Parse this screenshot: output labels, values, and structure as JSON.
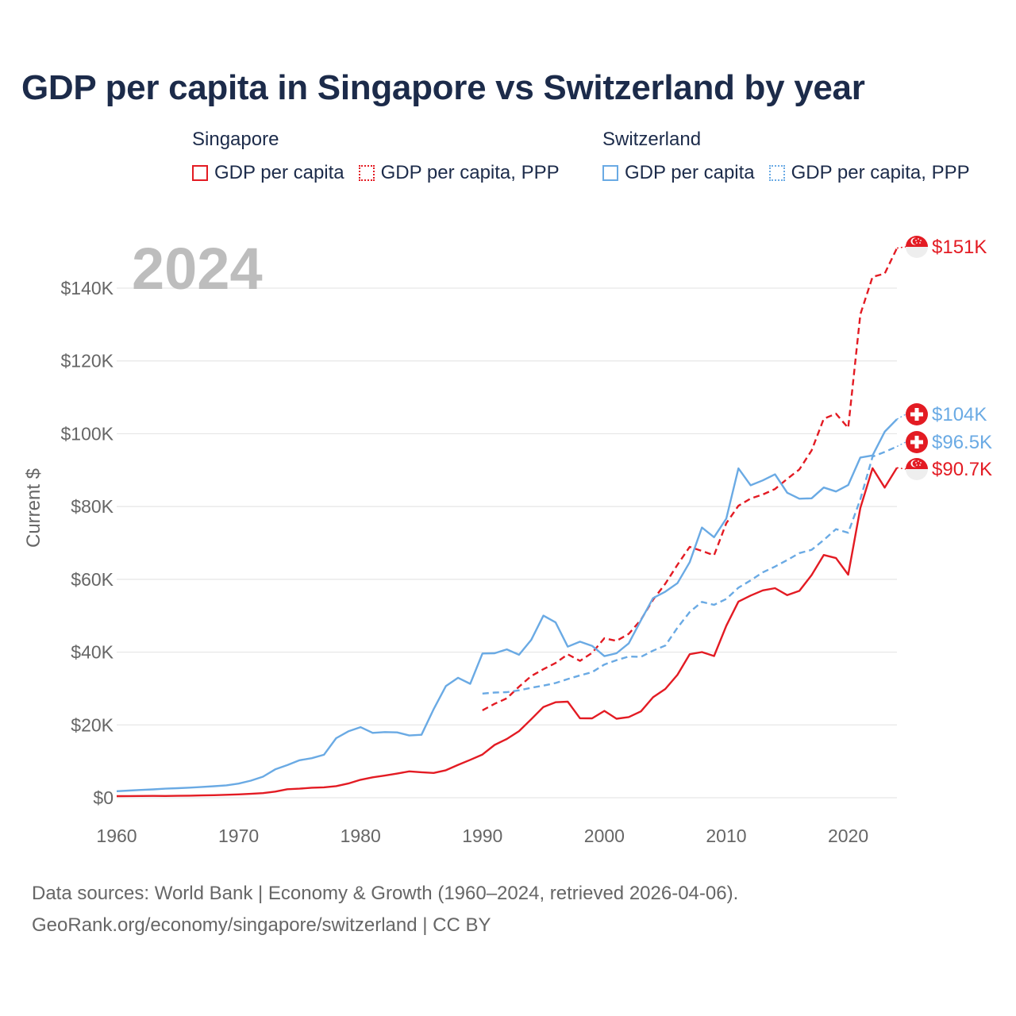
{
  "title": "GDP per capita in Singapore vs Switzerland by year",
  "legend": {
    "groups": [
      {
        "country": "Singapore",
        "items": [
          "GDP per capita",
          "GDP per capita, PPP"
        ]
      },
      {
        "country": "Switzerland",
        "items": [
          "GDP per capita",
          "GDP per capita, PPP"
        ]
      }
    ]
  },
  "colors": {
    "singapore": "#e31b23",
    "switzerland": "#6aaae4",
    "grid": "#e6e6e6",
    "axis_text": "#666666"
  },
  "current_year": "2024",
  "footer": {
    "line1": "Data sources: World Bank | Economy & Growth (1960–2024, retrieved 2026-04-06).",
    "line2": "GeoRank.org/economy/singapore/switzerland | CC BY"
  },
  "chart_data": {
    "type": "line",
    "title": "GDP per capita in Singapore vs Switzerland by year",
    "ylabel": "Current $",
    "xlabel": "",
    "xlim": [
      1960,
      2024
    ],
    "ylim": [
      0,
      150000
    ],
    "x_ticks": [
      "1960",
      "1970",
      "1980",
      "1990",
      "2000",
      "2010",
      "2020"
    ],
    "x_tick_values": [
      1960,
      1970,
      1980,
      1990,
      2000,
      2010,
      2020
    ],
    "y_ticks": [
      "$0",
      "$20K",
      "$40K",
      "$60K",
      "$80K",
      "$100K",
      "$120K",
      "$140K"
    ],
    "y_tick_values": [
      0,
      20000,
      40000,
      60000,
      80000,
      100000,
      120000,
      140000
    ],
    "series": [
      {
        "name": "Singapore GDP per capita",
        "country": "singapore",
        "style": "solid",
        "end_label": "$90.7K",
        "x": [
          1960,
          1961,
          1962,
          1963,
          1964,
          1965,
          1966,
          1967,
          1968,
          1969,
          1970,
          1971,
          1972,
          1973,
          1974,
          1975,
          1976,
          1977,
          1978,
          1979,
          1980,
          1981,
          1982,
          1983,
          1984,
          1985,
          1986,
          1987,
          1988,
          1989,
          1990,
          1991,
          1992,
          1993,
          1994,
          1995,
          1996,
          1997,
          1998,
          1999,
          2000,
          2001,
          2002,
          2003,
          2004,
          2005,
          2006,
          2007,
          2008,
          2009,
          2010,
          2011,
          2012,
          2013,
          2014,
          2015,
          2016,
          2017,
          2018,
          2019,
          2020,
          2021,
          2022,
          2023,
          2024
        ],
        "values": [
          428,
          449,
          472,
          511,
          485,
          517,
          567,
          626,
          708,
          812,
          925,
          1071,
          1264,
          1685,
          2342,
          2490,
          2746,
          2846,
          3194,
          3900,
          4928,
          5596,
          6078,
          6633,
          7234,
          7002,
          6800,
          7540,
          9023,
          10394,
          11862,
          14503,
          16135,
          18302,
          21553,
          24915,
          26233,
          26376,
          21829,
          21797,
          23852,
          21700,
          22160,
          23730,
          27608,
          29870,
          33769,
          39433,
          40008,
          38927,
          47237,
          53891,
          55546,
          56967,
          57563,
          55647,
          56828,
          61164,
          66679,
          65831,
          61274,
          79601,
          90521,
          85200,
          90674
        ]
      },
      {
        "name": "Singapore GDP per capita, PPP",
        "country": "singapore",
        "style": "dashed",
        "end_label": "$151K",
        "x": [
          1990,
          1991,
          1992,
          1993,
          1994,
          1995,
          1996,
          1997,
          1998,
          1999,
          2000,
          2001,
          2002,
          2003,
          2004,
          2005,
          2006,
          2007,
          2008,
          2009,
          2010,
          2011,
          2012,
          2013,
          2014,
          2015,
          2016,
          2017,
          2018,
          2019,
          2020,
          2021,
          2022,
          2023,
          2024
        ],
        "values": [
          24000,
          25800,
          27300,
          30500,
          33400,
          35300,
          37000,
          39400,
          37600,
          39800,
          43800,
          43100,
          45000,
          48900,
          54400,
          58800,
          64000,
          68900,
          67800,
          66600,
          75400,
          80200,
          82200,
          83300,
          84800,
          87600,
          90200,
          95400,
          104100,
          105500,
          101600,
          132800,
          143100,
          144000,
          151000
        ]
      },
      {
        "name": "Switzerland GDP per capita",
        "country": "switzerland",
        "style": "solid",
        "end_label": "$104K",
        "x": [
          1960,
          1961,
          1962,
          1963,
          1964,
          1965,
          1966,
          1967,
          1968,
          1969,
          1970,
          1971,
          1972,
          1973,
          1974,
          1975,
          1976,
          1977,
          1978,
          1979,
          1980,
          1981,
          1982,
          1983,
          1984,
          1985,
          1986,
          1987,
          1988,
          1989,
          1990,
          1991,
          1992,
          1993,
          1994,
          1995,
          1996,
          1997,
          1998,
          1999,
          2000,
          2001,
          2002,
          2003,
          2004,
          2005,
          2006,
          2007,
          2008,
          2009,
          2010,
          2011,
          2012,
          2013,
          2014,
          2015,
          2016,
          2017,
          2018,
          2019,
          2020,
          2021,
          2022,
          2023,
          2024
        ],
        "values": [
          1787,
          1971,
          2131,
          2294,
          2487,
          2617,
          2766,
          2971,
          3156,
          3393,
          3890,
          4682,
          5770,
          7791,
          8954,
          10282,
          10870,
          11791,
          16358,
          18234,
          19396,
          17819,
          18040,
          17954,
          17100,
          17290,
          24320,
          30650,
          32950,
          31290,
          39630,
          39690,
          40760,
          39280,
          43330,
          50030,
          48180,
          41490,
          42870,
          41720,
          38910,
          39690,
          42400,
          48770,
          54840,
          56620,
          58950,
          64710,
          74230,
          71560,
          76680,
          90470,
          85840,
          87190,
          88840,
          83780,
          82150,
          82250,
          85220,
          84120,
          85900,
          93460,
          94030,
          100560,
          104000
        ]
      },
      {
        "name": "Switzerland GDP per capita, PPP",
        "country": "switzerland",
        "style": "dashed",
        "end_label": "$96.5K",
        "x": [
          1990,
          1991,
          1992,
          1993,
          1994,
          1995,
          1996,
          1997,
          1998,
          1999,
          2000,
          2001,
          2002,
          2003,
          2004,
          2005,
          2006,
          2007,
          2008,
          2009,
          2010,
          2011,
          2012,
          2013,
          2014,
          2015,
          2016,
          2017,
          2018,
          2019,
          2020,
          2021,
          2022,
          2023,
          2024
        ],
        "values": [
          28600,
          28900,
          29000,
          29500,
          30200,
          30800,
          31500,
          32600,
          33600,
          34500,
          36600,
          37800,
          38800,
          38700,
          40400,
          41800,
          46700,
          51000,
          53800,
          53000,
          54600,
          57700,
          59700,
          61900,
          63500,
          65300,
          67200,
          68100,
          70800,
          73800,
          72800,
          82000,
          93700,
          95000,
          96500
        ]
      }
    ]
  }
}
